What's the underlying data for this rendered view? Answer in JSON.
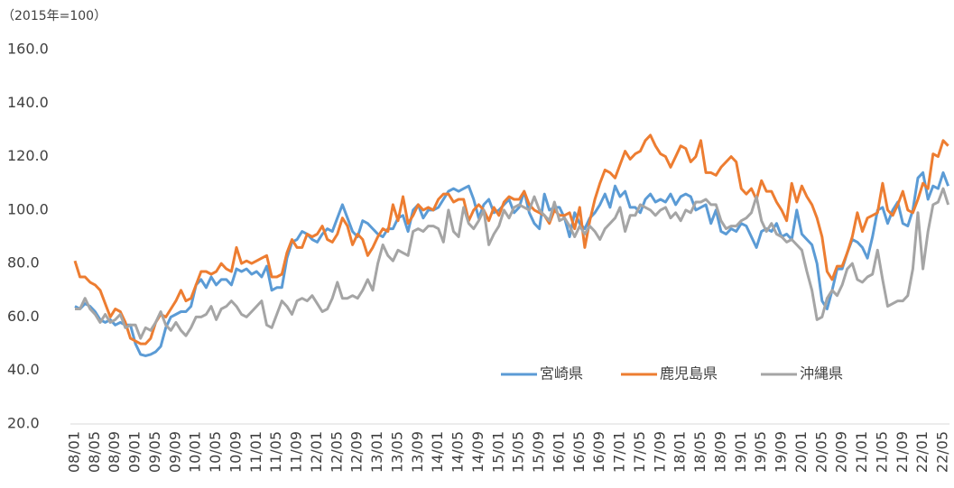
{
  "chart_data": {
    "type": "line",
    "y_label": "（2015年=100）",
    "ylim": [
      20,
      160
    ],
    "yticks": [
      {
        "value": 20,
        "label": "20.0"
      },
      {
        "value": 40,
        "label": "40.0"
      },
      {
        "value": 60,
        "label": "60.0"
      },
      {
        "value": 80,
        "label": "80.0"
      },
      {
        "value": 100,
        "label": "100.0"
      },
      {
        "value": 120,
        "label": "120.0"
      },
      {
        "value": 140,
        "label": "140.0"
      },
      {
        "value": 160,
        "label": "160.0"
      }
    ],
    "grid": false,
    "legend": "bottom-right",
    "categories": [
      "08/01",
      null,
      null,
      null,
      "08/05",
      null,
      null,
      null,
      "08/09",
      null,
      null,
      null,
      "09/01",
      null,
      null,
      null,
      "09/05",
      null,
      null,
      null,
      "09/09",
      null,
      null,
      null,
      "10/01",
      null,
      null,
      null,
      "10/05",
      null,
      null,
      null,
      "10/09",
      null,
      null,
      null,
      "11/01",
      null,
      null,
      null,
      "11/05",
      null,
      null,
      null,
      "11/09",
      null,
      null,
      null,
      "12/01",
      null,
      null,
      null,
      "12/05",
      null,
      null,
      null,
      "12/09",
      null,
      null,
      null,
      "13/01",
      null,
      null,
      null,
      "13/05",
      null,
      null,
      null,
      "13/09",
      null,
      null,
      null,
      "14/01",
      null,
      null,
      null,
      "14/05",
      null,
      null,
      null,
      "14/09",
      null,
      null,
      null,
      "15/01",
      null,
      null,
      null,
      "15/05",
      null,
      null,
      null,
      "15/09",
      null,
      null,
      null,
      "16/01",
      null,
      null,
      null,
      "16/05",
      null,
      null,
      null,
      "16/09",
      null,
      null,
      null,
      "17/01",
      null,
      null,
      null,
      "17/05",
      null,
      null,
      null,
      "17/09",
      null,
      null,
      null,
      "18/01",
      null,
      null,
      null,
      "18/05",
      null,
      null,
      null,
      "18/09",
      null,
      null,
      null,
      "19/01",
      null,
      null,
      null,
      "19/05",
      null,
      null,
      null,
      "19/09",
      null,
      null,
      null,
      "20/01",
      null,
      null,
      null,
      "20/05",
      null,
      null,
      null,
      "20/09",
      null,
      null,
      null,
      "21/01",
      null,
      null,
      null,
      "21/05",
      null,
      null,
      null,
      "21/09",
      null,
      null,
      null,
      "22/01",
      null,
      null,
      null,
      "22/05",
      null
    ],
    "series": [
      {
        "name": "宮崎県",
        "color": "#5b9bd5",
        "values": [
          64,
          63,
          65,
          64,
          62,
          59,
          58,
          59,
          57,
          58,
          57,
          57,
          50,
          46,
          45.5,
          46,
          47,
          49,
          56,
          60,
          61,
          62,
          62,
          64,
          72,
          74,
          71,
          75,
          72,
          74,
          74,
          72,
          78,
          77,
          78,
          76,
          77,
          75,
          79,
          70,
          71,
          71,
          82,
          88,
          89,
          92,
          91,
          89,
          88,
          91,
          93,
          92,
          97,
          102,
          97,
          92,
          90,
          96,
          95,
          93,
          91,
          90,
          93,
          93,
          97,
          98,
          92,
          100,
          102,
          97,
          100,
          100,
          101,
          104,
          107,
          108,
          107,
          108,
          109,
          104,
          97,
          102,
          104,
          99,
          100,
          102,
          104,
          99,
          101,
          107,
          99,
          95,
          93,
          106,
          100,
          101,
          101,
          97,
          90,
          99,
          95,
          93,
          97,
          99,
          102,
          106,
          101,
          109,
          105,
          107,
          101,
          101,
          99,
          104,
          106,
          103,
          104,
          103,
          106,
          102,
          105,
          106,
          105,
          100,
          101,
          102,
          95,
          100,
          92,
          91,
          93,
          92,
          95,
          94,
          90,
          86,
          92,
          93,
          92,
          95,
          90,
          91,
          89,
          100,
          91,
          89,
          87,
          80,
          66,
          63,
          70,
          78,
          78,
          84,
          89,
          88,
          86,
          82,
          90,
          100,
          101,
          95,
          100,
          103,
          95,
          94,
          100,
          112,
          114,
          104,
          109,
          108,
          114,
          109
        ]
      },
      {
        "name": "鹿児島県",
        "color": "#ed7d31",
        "values": [
          81,
          75,
          75,
          73,
          72,
          70,
          65,
          60,
          63,
          62,
          58,
          52,
          51,
          50,
          50,
          52,
          58,
          61,
          60,
          63,
          66,
          70,
          66,
          67,
          72,
          77,
          77,
          76,
          77,
          80,
          78,
          77,
          86,
          80,
          81,
          80,
          81,
          82,
          83,
          75,
          75,
          76,
          84,
          89,
          86,
          86,
          91,
          90,
          91,
          94,
          89,
          88,
          91,
          97,
          94,
          87,
          91,
          89,
          83,
          86,
          90,
          93,
          92,
          102,
          96,
          105,
          95,
          98,
          102,
          100,
          101,
          100,
          104,
          106,
          106,
          103,
          104,
          104,
          96,
          100,
          102,
          100,
          96,
          101,
          98,
          103,
          105,
          104,
          104,
          107,
          102,
          100,
          99,
          98,
          95,
          100,
          98,
          98,
          99,
          93,
          101,
          86,
          96,
          104,
          110,
          115,
          114,
          112,
          117,
          122,
          119,
          121,
          122,
          126,
          128,
          124,
          121,
          120,
          116,
          120,
          124,
          123,
          118,
          120,
          126,
          114,
          114,
          113,
          116,
          118,
          120,
          118,
          108,
          106,
          108,
          104,
          111,
          107,
          107,
          103,
          100,
          96,
          110,
          103,
          109,
          105,
          102,
          97,
          90,
          77,
          74,
          79,
          79,
          84,
          90,
          99,
          92,
          97,
          98,
          99,
          110,
          100,
          98,
          102,
          107,
          100,
          99,
          104,
          110,
          108,
          121,
          120,
          126,
          124
        ]
      },
      {
        "name": "沖縄県",
        "color": "#a5a5a5",
        "values": [
          63,
          63,
          67,
          63,
          61,
          58,
          61,
          58,
          59,
          61,
          56,
          57,
          57,
          52,
          56,
          55,
          58,
          62,
          57,
          55,
          58,
          55,
          53,
          56,
          60,
          60,
          61,
          64,
          59,
          63,
          64,
          66,
          64,
          61,
          60,
          62,
          64,
          66,
          57,
          56,
          61,
          66,
          64,
          61,
          66,
          67,
          66,
          68,
          65,
          62,
          63,
          67,
          73,
          67,
          67,
          68,
          67,
          70,
          74,
          70,
          80,
          87,
          83,
          81,
          85,
          84,
          83,
          92,
          93,
          92,
          94,
          94,
          93,
          88,
          100,
          92,
          90,
          101,
          95,
          93,
          96,
          100,
          87,
          91,
          94,
          100,
          97,
          101,
          102,
          101,
          100,
          105,
          100,
          98,
          96,
          103,
          96,
          97,
          94,
          90,
          94,
          91,
          94,
          92,
          89,
          93,
          95,
          97,
          101,
          92,
          98,
          98,
          102,
          101,
          100,
          98,
          100,
          101,
          97,
          99,
          96,
          100,
          99,
          103,
          103,
          104,
          102,
          102,
          96,
          93,
          94,
          94,
          96,
          97,
          99,
          105,
          96,
          92,
          95,
          91,
          90,
          88,
          89,
          87,
          85,
          77,
          70,
          59,
          60,
          67,
          70,
          68,
          72,
          78,
          80,
          74,
          73,
          75,
          76,
          85,
          74,
          64,
          65,
          66,
          66,
          68,
          78,
          99,
          78,
          92,
          102,
          103,
          108,
          102
        ]
      }
    ]
  }
}
